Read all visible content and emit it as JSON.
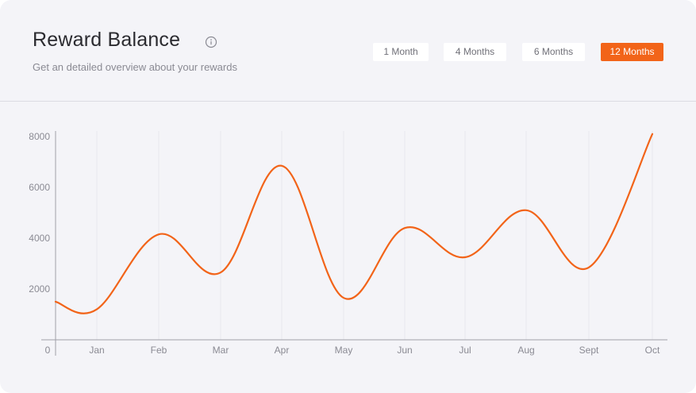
{
  "header": {
    "title": "Reward Balance",
    "subtitle": "Get an detailed overview about your rewards",
    "info_icon": "info-circle-icon"
  },
  "range_buttons": [
    {
      "label": "1 Month",
      "active": false
    },
    {
      "label": "4 Months",
      "active": false
    },
    {
      "label": "6 Months",
      "active": false
    },
    {
      "label": "12 Months",
      "active": true
    }
  ],
  "colors": {
    "accent": "#f26419",
    "card_background": "#f4f4f8",
    "grid": "#e8e8ee",
    "axis": "#a0a0a8"
  },
  "chart_data": {
    "type": "line",
    "x_origin_label": "0",
    "categories": [
      "Jan",
      "Feb",
      "Mar",
      "Apr",
      "May",
      "Jun",
      "Jul",
      "Aug",
      "Sept",
      "Oct"
    ],
    "y_ticks": [
      2000,
      4000,
      6000,
      8000
    ],
    "ylim": [
      0,
      8500
    ],
    "grid": "vertical",
    "series": [
      {
        "values": [
          1200,
          4150,
          2650,
          6850,
          1650,
          4400,
          3250,
          5100,
          2850,
          8100
        ],
        "start_value": 1500
      }
    ]
  }
}
